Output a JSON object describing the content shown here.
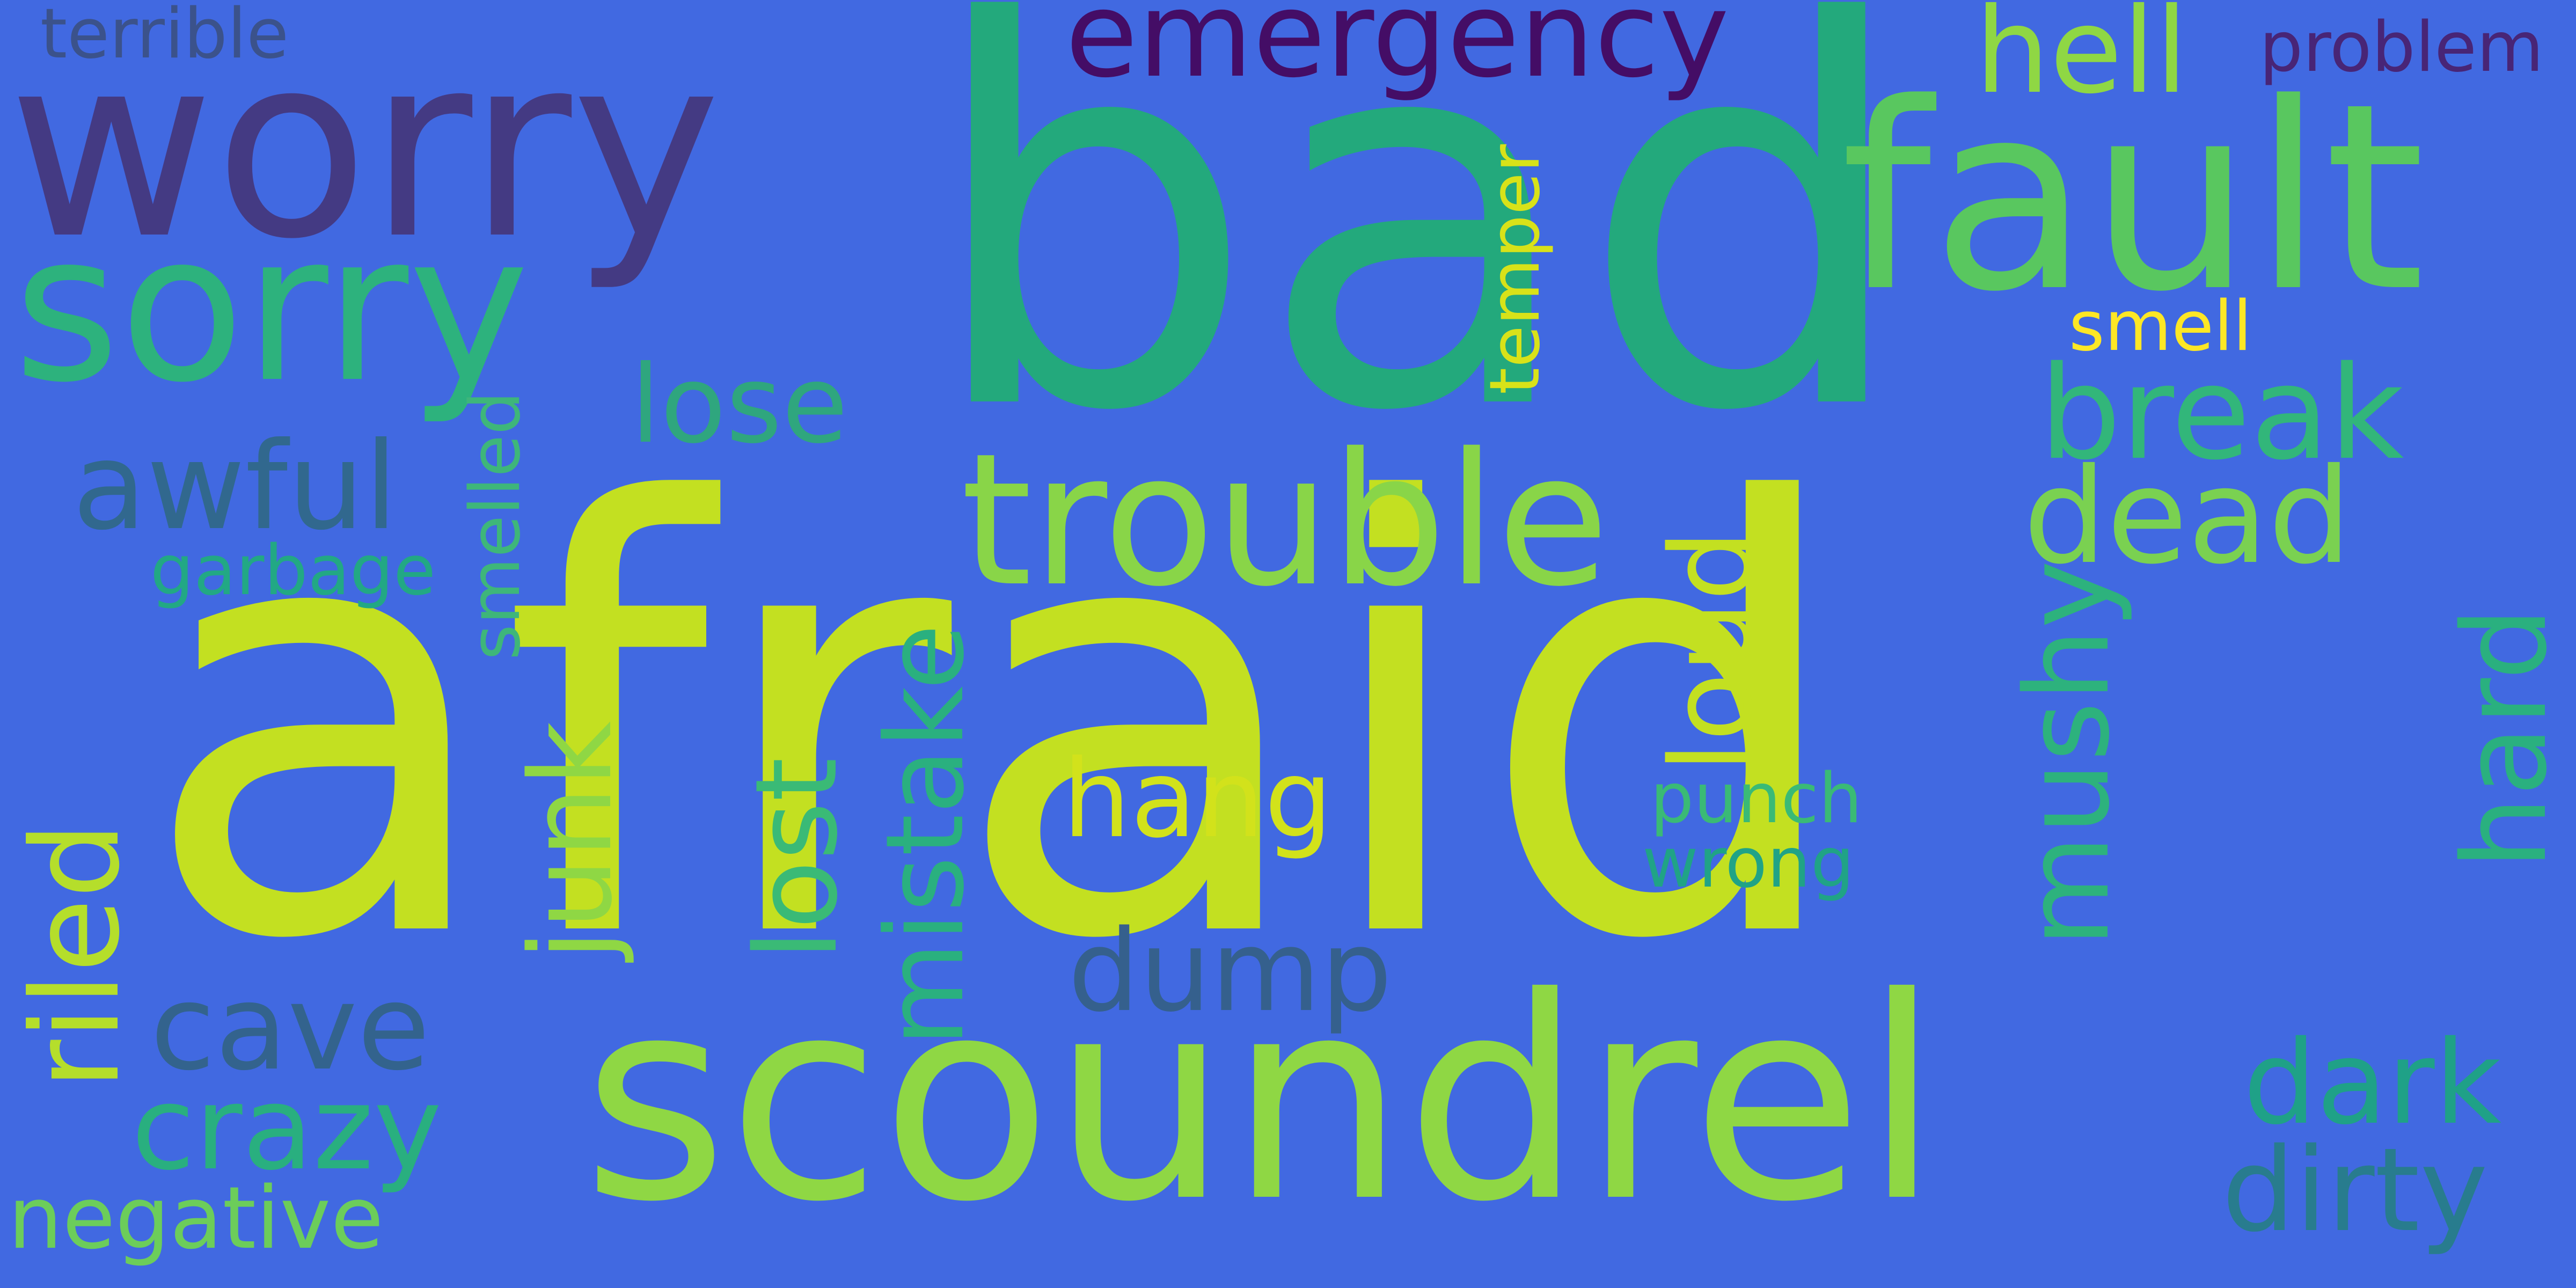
{
  "background": "#4169e1",
  "words": [
    {
      "text": "afraid",
      "color": "#c3e021",
      "rotation": 0
    },
    {
      "text": "bad",
      "color": "#23a97c",
      "rotation": 0
    },
    {
      "text": "scoundrel",
      "color": "#8fd744",
      "rotation": 0
    },
    {
      "text": "worry",
      "color": "#443a83",
      "rotation": 0
    },
    {
      "text": "fault",
      "color": "#59c75f",
      "rotation": 0
    },
    {
      "text": "sorry",
      "color": "#2db27d",
      "rotation": 0
    },
    {
      "text": "trouble",
      "color": "#89d548",
      "rotation": 0
    },
    {
      "text": "emergency",
      "color": "#440d66",
      "rotation": 0
    },
    {
      "text": "break",
      "color": "#32b67a",
      "rotation": 0
    },
    {
      "text": "dead",
      "color": "#7ad151",
      "rotation": 0
    },
    {
      "text": "awful",
      "color": "#31688e",
      "rotation": 0
    },
    {
      "text": "hell",
      "color": "#8fd744",
      "rotation": 0
    },
    {
      "text": "problem",
      "color": "#482576",
      "rotation": 0
    },
    {
      "text": "terrible",
      "color": "#3b528b",
      "rotation": 0
    },
    {
      "text": "lose",
      "color": "#2fa67e",
      "rotation": 0
    },
    {
      "text": "smell",
      "color": "#fde725",
      "rotation": 0
    },
    {
      "text": "temper",
      "color": "#d8e219",
      "rotation": 90
    },
    {
      "text": "smelled",
      "color": "#3eb67a",
      "rotation": 90
    },
    {
      "text": "riled",
      "color": "#22a884",
      "rotation": 0
    },
    {
      "text": "garbage",
      "color": "#b5de2b",
      "rotation": 90
    },
    {
      "text": "junk",
      "color": "#8fd744",
      "rotation": 90
    },
    {
      "text": "lost",
      "color": "#3aba76",
      "rotation": 90
    },
    {
      "text": "mistake",
      "color": "#2ab07f",
      "rotation": 90
    },
    {
      "text": "loud",
      "color": "#c3e021",
      "rotation": 90
    },
    {
      "text": "mushy",
      "color": "#2db27d",
      "rotation": 90
    },
    {
      "text": "hard",
      "color": "#2ab07f",
      "rotation": 90
    },
    {
      "text": "hang",
      "color": "#d2e21b",
      "rotation": 0
    },
    {
      "text": "punch",
      "color": "#3aba76",
      "rotation": 0
    },
    {
      "text": "wrong",
      "color": "#20a386",
      "rotation": 0
    },
    {
      "text": "dump",
      "color": "#35608d",
      "rotation": 0
    },
    {
      "text": "cave",
      "color": "#33638d",
      "rotation": 0
    },
    {
      "text": "crazy",
      "color": "#29af7f",
      "rotation": 0
    },
    {
      "text": "negative",
      "color": "#6ccd5a",
      "rotation": 0
    },
    {
      "text": "dark",
      "color": "#1fa187",
      "rotation": 0
    },
    {
      "text": "dirty",
      "color": "#287c8e",
      "rotation": 0
    }
  ]
}
